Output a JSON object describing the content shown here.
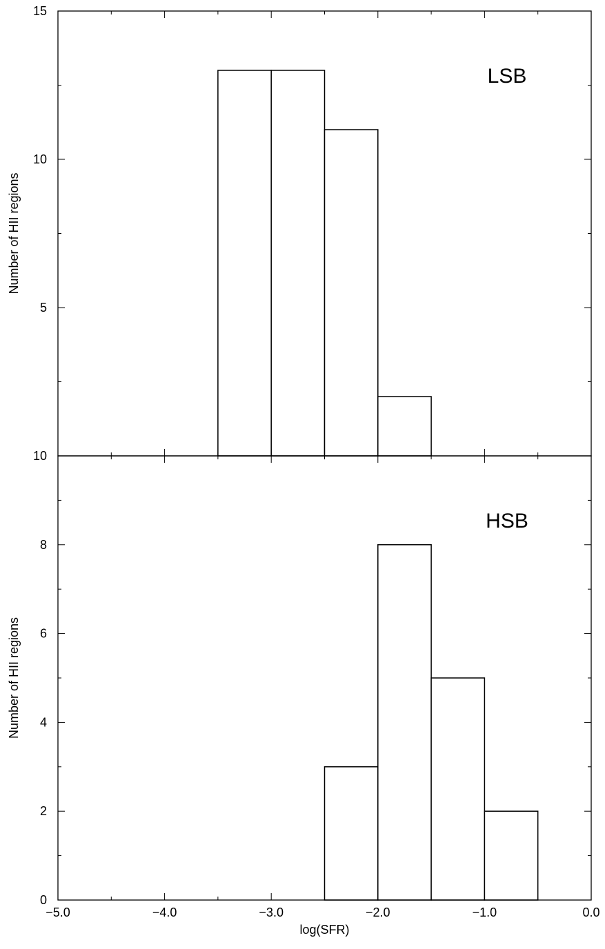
{
  "chart_data": [
    {
      "type": "bar",
      "panel": "top",
      "annotation": "LSB",
      "ylabel": "Number of HII regions",
      "xlabel": "",
      "xlim": [
        -5.0,
        0.0
      ],
      "ylim": [
        0,
        15
      ],
      "yticks": [
        0,
        5,
        10,
        15
      ],
      "ytick_labels": [
        "",
        "5",
        "10",
        "15"
      ],
      "bins": [
        {
          "x0": -3.5,
          "x1": -3.0,
          "value": 13
        },
        {
          "x0": -3.0,
          "x1": -2.5,
          "value": 13
        },
        {
          "x0": -2.5,
          "x1": -2.0,
          "value": 11
        },
        {
          "x0": -2.0,
          "x1": -1.5,
          "value": 2
        }
      ]
    },
    {
      "type": "bar",
      "panel": "bottom",
      "annotation": "HSB",
      "ylabel": "Number of HII regions",
      "xlabel": "log(SFR)",
      "xlim": [
        -5.0,
        0.0
      ],
      "ylim": [
        0,
        10
      ],
      "yticks": [
        0,
        2,
        4,
        6,
        8,
        10
      ],
      "ytick_labels": [
        "0",
        "2",
        "4",
        "6",
        "8",
        "10"
      ],
      "xticks": [
        -5.0,
        -4.0,
        -3.0,
        -2.0,
        -1.0,
        0.0
      ],
      "xtick_labels": [
        "−5.0",
        "−4.0",
        "−3.0",
        "−2.0",
        "−1.0",
        "0.0"
      ],
      "bins": [
        {
          "x0": -2.5,
          "x1": -2.0,
          "value": 3
        },
        {
          "x0": -2.0,
          "x1": -1.5,
          "value": 8
        },
        {
          "x0": -1.5,
          "x1": -1.0,
          "value": 5
        },
        {
          "x0": -1.0,
          "x1": -0.5,
          "value": 2
        }
      ]
    }
  ]
}
